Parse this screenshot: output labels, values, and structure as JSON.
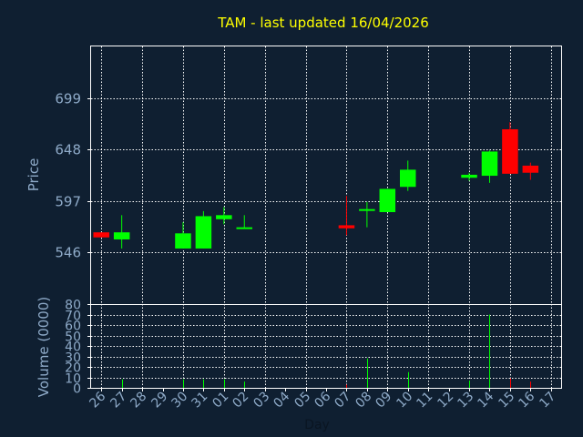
{
  "chart_data": {
    "type": "candlestick",
    "title": "TAM - last updated 16/04/2026",
    "ylabel": "Price",
    "volume_label": "Volume (0000)",
    "xlabel": "Day",
    "ylim": [
      495,
      750
    ],
    "y_ticks": [
      546,
      597,
      648,
      699
    ],
    "volume_ylim": [
      0,
      80
    ],
    "volume_ticks": [
      0,
      10,
      20,
      30,
      40,
      50,
      60,
      70,
      80
    ],
    "x_ticks": [
      "26",
      "27",
      "28",
      "29",
      "30",
      "31",
      "01",
      "02",
      "03",
      "04",
      "05",
      "06",
      "07",
      "08",
      "09",
      "10",
      "11",
      "12",
      "13",
      "14",
      "15",
      "16",
      "17"
    ],
    "colors": {
      "up": "#00ff00",
      "down": "#ff0000",
      "grid": "#ffffff",
      "axis": "#ffffff",
      "background": "#0f1f31",
      "text": "#8eaac8",
      "title": "#ffff00"
    },
    "candles": [
      {
        "x": "26",
        "open": 566,
        "high": 566,
        "low": 561,
        "close": 561,
        "volume": 0
      },
      {
        "x": "27",
        "open": 559,
        "high": 583,
        "low": 550,
        "close": 566,
        "volume": 8
      },
      {
        "x": "30",
        "open": 550,
        "high": 576,
        "low": 550,
        "close": 565,
        "volume": 8
      },
      {
        "x": "31",
        "open": 550,
        "high": 587,
        "low": 550,
        "close": 582,
        "volume": 8
      },
      {
        "x": "01",
        "open": 579,
        "high": 591,
        "low": 574,
        "close": 583,
        "volume": 8
      },
      {
        "x": "02",
        "open": 570,
        "high": 583,
        "low": 570,
        "close": 571,
        "volume": 6
      },
      {
        "x": "07",
        "open": 573,
        "high": 602,
        "low": 563,
        "close": 570,
        "volume": 3
      },
      {
        "x": "08",
        "open": 588,
        "high": 596,
        "low": 571,
        "close": 589,
        "volume": 28
      },
      {
        "x": "09",
        "open": 586,
        "high": 609,
        "low": 586,
        "close": 609,
        "volume": 0
      },
      {
        "x": "10",
        "open": 611,
        "high": 637,
        "low": 607,
        "close": 628,
        "volume": 15
      },
      {
        "x": "13",
        "open": 620,
        "high": 625,
        "low": 617,
        "close": 623,
        "volume": 7
      },
      {
        "x": "14",
        "open": 622,
        "high": 647,
        "low": 615,
        "close": 646,
        "volume": 70
      },
      {
        "x": "15",
        "open": 668,
        "high": 675,
        "low": 624,
        "close": 624,
        "volume": 9
      },
      {
        "x": "16",
        "open": 632,
        "high": 635,
        "low": 618,
        "close": 625,
        "volume": 6
      }
    ]
  }
}
